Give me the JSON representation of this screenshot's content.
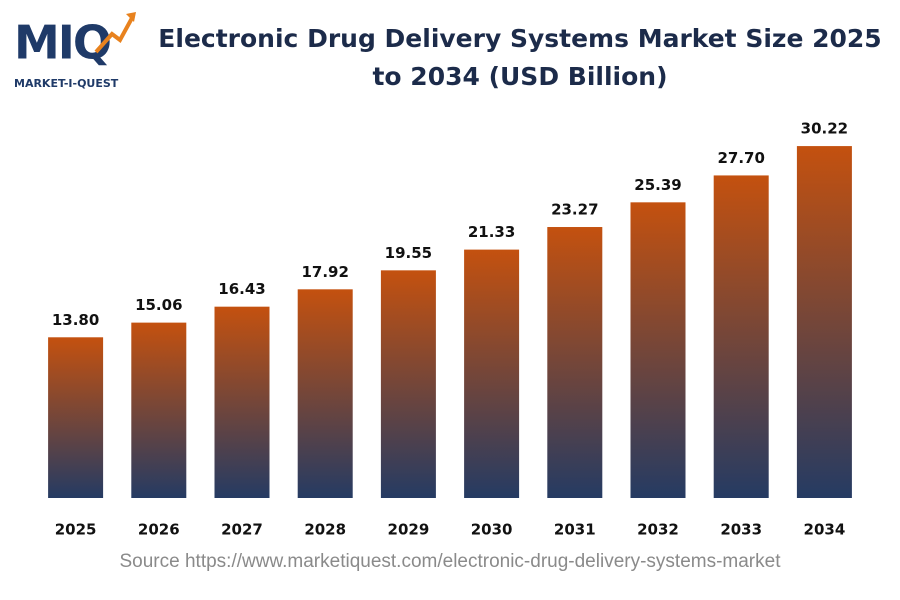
{
  "logo": {
    "mark": "MIQ",
    "name": "MARKET-I-QUEST"
  },
  "chart_data": {
    "type": "bar",
    "title": "Electronic Drug Delivery Systems Market Size 2025 to 2034 (USD Billion)",
    "categories": [
      "2025",
      "2026",
      "2027",
      "2028",
      "2029",
      "2030",
      "2031",
      "2032",
      "2033",
      "2034"
    ],
    "values": [
      13.8,
      15.06,
      16.43,
      17.92,
      19.55,
      21.33,
      23.27,
      25.39,
      27.7,
      30.22
    ],
    "value_labels": [
      "13.80",
      "15.06",
      "16.43",
      "17.92",
      "19.55",
      "21.33",
      "23.27",
      "25.39",
      "27.70",
      "30.22"
    ],
    "color": [
      "#c4510f",
      "#253b63"
    ],
    "ylim": [
      0,
      31
    ],
    "source": "Source https://www.marketiquest.com/electronic-drug-delivery-systems-market"
  }
}
